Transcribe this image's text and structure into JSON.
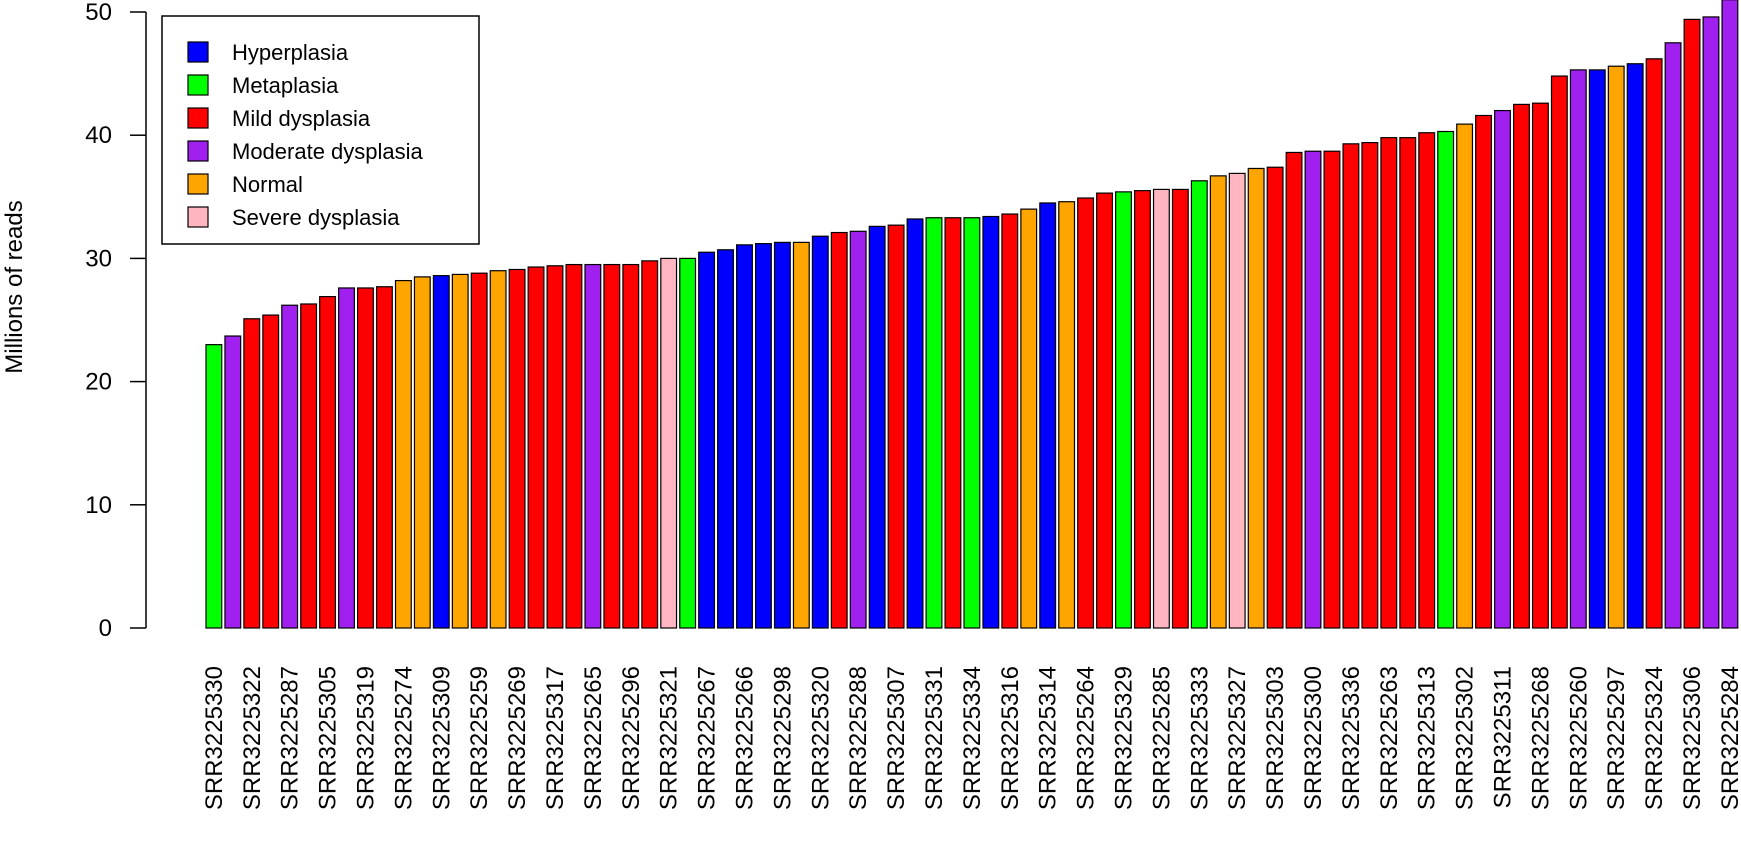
{
  "chart_data": {
    "type": "bar",
    "title": "",
    "xlabel": "",
    "ylabel": "Millions of reads",
    "ylim": [
      0,
      50
    ],
    "yticks": [
      0,
      10,
      20,
      30,
      40,
      50
    ],
    "grid": false,
    "legend_position": "top-left",
    "legend": [
      {
        "label": "Hyperplasia",
        "color": "#0000ff"
      },
      {
        "label": "Metaplasia",
        "color": "#00ff00"
      },
      {
        "label": "Mild dysplasia",
        "color": "#ff0000"
      },
      {
        "label": "Moderate dysplasia",
        "color": "#a020f0"
      },
      {
        "label": "Normal",
        "color": "#ffa500"
      },
      {
        "label": "Severe dysplasia",
        "color": "#ffb6c1"
      }
    ],
    "tick_labels": [
      "SRR3225330",
      "SRR3225322",
      "SRR3225287",
      "SRR3225305",
      "SRR3225319",
      "SRR3225274",
      "SRR3225309",
      "SRR3225259",
      "SRR3225269",
      "SRR3225317",
      "SRR3225265",
      "SRR3225296",
      "SRR3225321",
      "SRR3225267",
      "SRR3225266",
      "SRR3225298",
      "SRR3225320",
      "SRR3225288",
      "SRR3225307",
      "SRR3225331",
      "SRR3225334",
      "SRR3225316",
      "SRR3225314",
      "SRR3225264",
      "SRR3225329",
      "SRR3225285",
      "SRR3225333",
      "SRR3225327",
      "SRR3225303",
      "SRR3225300",
      "SRR3225336",
      "SRR3225263",
      "SRR3225313",
      "SRR3225302",
      "SRR3225311",
      "SRR3225268",
      "SRR3225260",
      "SRR3225297",
      "SRR3225324",
      "SRR3225306",
      "SRR3225284"
    ],
    "bars": [
      {
        "value": 23.0,
        "group": "Metaplasia"
      },
      {
        "value": 23.7,
        "group": "Moderate dysplasia"
      },
      {
        "value": 25.1,
        "group": "Mild dysplasia"
      },
      {
        "value": 25.4,
        "group": "Mild dysplasia"
      },
      {
        "value": 26.2,
        "group": "Moderate dysplasia"
      },
      {
        "value": 26.3,
        "group": "Mild dysplasia"
      },
      {
        "value": 26.9,
        "group": "Mild dysplasia"
      },
      {
        "value": 27.6,
        "group": "Moderate dysplasia"
      },
      {
        "value": 27.6,
        "group": "Mild dysplasia"
      },
      {
        "value": 27.7,
        "group": "Mild dysplasia"
      },
      {
        "value": 28.2,
        "group": "Normal"
      },
      {
        "value": 28.5,
        "group": "Normal"
      },
      {
        "value": 28.6,
        "group": "Hyperplasia"
      },
      {
        "value": 28.7,
        "group": "Normal"
      },
      {
        "value": 28.8,
        "group": "Mild dysplasia"
      },
      {
        "value": 29.0,
        "group": "Normal"
      },
      {
        "value": 29.1,
        "group": "Mild dysplasia"
      },
      {
        "value": 29.3,
        "group": "Mild dysplasia"
      },
      {
        "value": 29.4,
        "group": "Mild dysplasia"
      },
      {
        "value": 29.5,
        "group": "Mild dysplasia"
      },
      {
        "value": 29.5,
        "group": "Moderate dysplasia"
      },
      {
        "value": 29.5,
        "group": "Mild dysplasia"
      },
      {
        "value": 29.5,
        "group": "Mild dysplasia"
      },
      {
        "value": 29.8,
        "group": "Mild dysplasia"
      },
      {
        "value": 30.0,
        "group": "Severe dysplasia"
      },
      {
        "value": 30.0,
        "group": "Metaplasia"
      },
      {
        "value": 30.5,
        "group": "Hyperplasia"
      },
      {
        "value": 30.7,
        "group": "Hyperplasia"
      },
      {
        "value": 31.1,
        "group": "Hyperplasia"
      },
      {
        "value": 31.2,
        "group": "Hyperplasia"
      },
      {
        "value": 31.3,
        "group": "Hyperplasia"
      },
      {
        "value": 31.3,
        "group": "Normal"
      },
      {
        "value": 31.8,
        "group": "Hyperplasia"
      },
      {
        "value": 32.1,
        "group": "Mild dysplasia"
      },
      {
        "value": 32.2,
        "group": "Moderate dysplasia"
      },
      {
        "value": 32.6,
        "group": "Hyperplasia"
      },
      {
        "value": 32.7,
        "group": "Mild dysplasia"
      },
      {
        "value": 33.2,
        "group": "Hyperplasia"
      },
      {
        "value": 33.3,
        "group": "Metaplasia"
      },
      {
        "value": 33.3,
        "group": "Mild dysplasia"
      },
      {
        "value": 33.3,
        "group": "Metaplasia"
      },
      {
        "value": 33.4,
        "group": "Hyperplasia"
      },
      {
        "value": 33.6,
        "group": "Mild dysplasia"
      },
      {
        "value": 34.0,
        "group": "Normal"
      },
      {
        "value": 34.5,
        "group": "Hyperplasia"
      },
      {
        "value": 34.6,
        "group": "Normal"
      },
      {
        "value": 34.9,
        "group": "Mild dysplasia"
      },
      {
        "value": 35.3,
        "group": "Mild dysplasia"
      },
      {
        "value": 35.4,
        "group": "Metaplasia"
      },
      {
        "value": 35.5,
        "group": "Mild dysplasia"
      },
      {
        "value": 35.6,
        "group": "Severe dysplasia"
      },
      {
        "value": 35.6,
        "group": "Mild dysplasia"
      },
      {
        "value": 36.3,
        "group": "Metaplasia"
      },
      {
        "value": 36.7,
        "group": "Normal"
      },
      {
        "value": 36.9,
        "group": "Severe dysplasia"
      },
      {
        "value": 37.3,
        "group": "Normal"
      },
      {
        "value": 37.4,
        "group": "Mild dysplasia"
      },
      {
        "value": 38.6,
        "group": "Mild dysplasia"
      },
      {
        "value": 38.7,
        "group": "Moderate dysplasia"
      },
      {
        "value": 38.7,
        "group": "Mild dysplasia"
      },
      {
        "value": 39.3,
        "group": "Mild dysplasia"
      },
      {
        "value": 39.4,
        "group": "Mild dysplasia"
      },
      {
        "value": 39.8,
        "group": "Mild dysplasia"
      },
      {
        "value": 39.8,
        "group": "Mild dysplasia"
      },
      {
        "value": 40.2,
        "group": "Mild dysplasia"
      },
      {
        "value": 40.3,
        "group": "Metaplasia"
      },
      {
        "value": 40.9,
        "group": "Normal"
      },
      {
        "value": 41.6,
        "group": "Mild dysplasia"
      },
      {
        "value": 42.0,
        "group": "Moderate dysplasia"
      },
      {
        "value": 42.5,
        "group": "Mild dysplasia"
      },
      {
        "value": 42.6,
        "group": "Mild dysplasia"
      },
      {
        "value": 44.8,
        "group": "Mild dysplasia"
      },
      {
        "value": 45.3,
        "group": "Moderate dysplasia"
      },
      {
        "value": 45.3,
        "group": "Hyperplasia"
      },
      {
        "value": 45.6,
        "group": "Normal"
      },
      {
        "value": 45.8,
        "group": "Hyperplasia"
      },
      {
        "value": 46.2,
        "group": "Mild dysplasia"
      },
      {
        "value": 47.5,
        "group": "Moderate dysplasia"
      },
      {
        "value": 49.4,
        "group": "Mild dysplasia"
      },
      {
        "value": 49.6,
        "group": "Moderate dysplasia"
      },
      {
        "value": 51.0,
        "group": "Moderate dysplasia"
      }
    ]
  }
}
